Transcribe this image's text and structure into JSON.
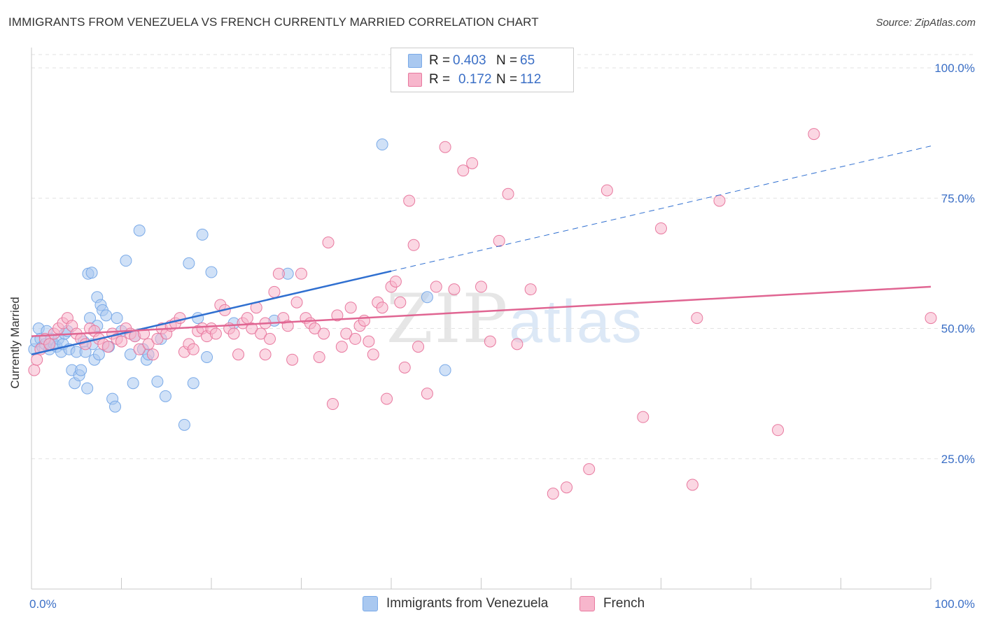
{
  "header": {
    "title": "IMMIGRANTS FROM VENEZUELA VS FRENCH CURRENTLY MARRIED CORRELATION CHART",
    "source": "Source: ZipAtlas.com"
  },
  "watermark": {
    "zip": "ZIP",
    "atlas": "atlas"
  },
  "legend": {
    "rows": [
      {
        "r_label": "R =",
        "r_value": "0.403",
        "n_label": "N =",
        "n_value": "65",
        "color": "#a9c8f0"
      },
      {
        "r_label": "R =",
        "r_value": "0.172",
        "n_label": "N =",
        "n_value": "112",
        "color": "#f7b6cc"
      }
    ]
  },
  "chart_data": {
    "type": "scatter",
    "title": "IMMIGRANTS FROM VENEZUELA VS FRENCH CURRENTLY MARRIED CORRELATION CHART",
    "xlabel": "",
    "ylabel": "Currently Married",
    "xlim": [
      0,
      100
    ],
    "ylim": [
      0,
      100
    ],
    "x_tick_labels": [
      "0.0%",
      "100.0%"
    ],
    "y_ticks": [
      25,
      50,
      75,
      100
    ],
    "y_tick_labels": [
      "25.0%",
      "50.0%",
      "75.0%",
      "100.0%"
    ],
    "grid": "horizontal dashed",
    "legend_position": "top-center",
    "series": [
      {
        "name": "Immigrants from Venezuela",
        "color": "#7aaae8",
        "fill": "#a9c8f0",
        "R": 0.403,
        "N": 65,
        "trend": {
          "x0": 0,
          "y0": 45.0,
          "x1": 40,
          "y1": 61.0,
          "dash_x1": 100,
          "dash_y1": 85.0
        },
        "points": [
          [
            0.3,
            46
          ],
          [
            0.5,
            47.5
          ],
          [
            0.8,
            50
          ],
          [
            1.0,
            48
          ],
          [
            1.2,
            46.5
          ],
          [
            1.5,
            47
          ],
          [
            1.7,
            49.5
          ],
          [
            2.0,
            46
          ],
          [
            2.2,
            48
          ],
          [
            2.5,
            47
          ],
          [
            2.8,
            46.5
          ],
          [
            3.0,
            48
          ],
          [
            3.3,
            45.5
          ],
          [
            3.5,
            47
          ],
          [
            3.7,
            49
          ],
          [
            4.0,
            49.5
          ],
          [
            4.2,
            46
          ],
          [
            4.5,
            42
          ],
          [
            4.8,
            39.5
          ],
          [
            5.0,
            45.5
          ],
          [
            5.3,
            41
          ],
          [
            5.5,
            42
          ],
          [
            5.8,
            47.5
          ],
          [
            6.0,
            45.5
          ],
          [
            6.2,
            38.5
          ],
          [
            6.5,
            52
          ],
          [
            6.8,
            47
          ],
          [
            7.0,
            44
          ],
          [
            7.3,
            50.5
          ],
          [
            7.5,
            45
          ],
          [
            6.3,
            60.5
          ],
          [
            6.7,
            60.7
          ],
          [
            7.3,
            56
          ],
          [
            7.7,
            54.5
          ],
          [
            7.9,
            53.5
          ],
          [
            8.3,
            52.5
          ],
          [
            8.6,
            46.5
          ],
          [
            9.0,
            36.5
          ],
          [
            9.3,
            35
          ],
          [
            9.5,
            52
          ],
          [
            10.0,
            49.5
          ],
          [
            10.5,
            63
          ],
          [
            11.0,
            45
          ],
          [
            11.3,
            39.5
          ],
          [
            11.5,
            48.5
          ],
          [
            12.0,
            68.8
          ],
          [
            12.4,
            46
          ],
          [
            12.8,
            44
          ],
          [
            13.0,
            45
          ],
          [
            14.0,
            39.8
          ],
          [
            14.4,
            48
          ],
          [
            14.9,
            37
          ],
          [
            17.5,
            62.5
          ],
          [
            18.0,
            39.5
          ],
          [
            18.5,
            52
          ],
          [
            19.0,
            68
          ],
          [
            19.5,
            44.5
          ],
          [
            20.0,
            60.8
          ],
          [
            22.5,
            51
          ],
          [
            27,
            51.5
          ],
          [
            39.0,
            85.3
          ],
          [
            44,
            56
          ],
          [
            46,
            42
          ],
          [
            28.5,
            60.5
          ],
          [
            17.0,
            31.5
          ]
        ]
      },
      {
        "name": "French",
        "color": "#e8799f",
        "fill": "#f7b6cc",
        "R": 0.172,
        "N": 112,
        "trend": {
          "x0": 0,
          "y0": 48.5,
          "x1": 100,
          "y1": 58.0
        },
        "points": [
          [
            0.3,
            42
          ],
          [
            0.6,
            44
          ],
          [
            1.0,
            46
          ],
          [
            1.5,
            48
          ],
          [
            2.0,
            47
          ],
          [
            2.5,
            49
          ],
          [
            3.0,
            50
          ],
          [
            3.5,
            51
          ],
          [
            4.0,
            52
          ],
          [
            4.5,
            50.5
          ],
          [
            5.0,
            49
          ],
          [
            5.5,
            48
          ],
          [
            6.0,
            47
          ],
          [
            6.5,
            50
          ],
          [
            7.0,
            49.5
          ],
          [
            7.5,
            48
          ],
          [
            8.0,
            47
          ],
          [
            8.5,
            46.5
          ],
          [
            9.0,
            49
          ],
          [
            9.5,
            48
          ],
          [
            10.0,
            47.5
          ],
          [
            10.5,
            50
          ],
          [
            11.0,
            49
          ],
          [
            11.5,
            48.5
          ],
          [
            12.0,
            46
          ],
          [
            12.5,
            49
          ],
          [
            13.0,
            47
          ],
          [
            13.5,
            45
          ],
          [
            14.0,
            48
          ],
          [
            14.5,
            50
          ],
          [
            15.0,
            49
          ],
          [
            15.5,
            50.5
          ],
          [
            16.0,
            51
          ],
          [
            16.5,
            52
          ],
          [
            17.0,
            45.5
          ],
          [
            17.5,
            47
          ],
          [
            18.0,
            46
          ],
          [
            18.5,
            49.5
          ],
          [
            19.0,
            50
          ],
          [
            19.5,
            48.5
          ],
          [
            20.0,
            50
          ],
          [
            20.5,
            49
          ],
          [
            21.0,
            54.5
          ],
          [
            21.5,
            53.5
          ],
          [
            22.0,
            50
          ],
          [
            22.5,
            49
          ],
          [
            23.0,
            45
          ],
          [
            23.5,
            51
          ],
          [
            24.0,
            52
          ],
          [
            24.5,
            50
          ],
          [
            25.0,
            54
          ],
          [
            25.5,
            49
          ],
          [
            26.0,
            51
          ],
          [
            26.5,
            48
          ],
          [
            27.0,
            57
          ],
          [
            27.5,
            60.5
          ],
          [
            28.0,
            52
          ],
          [
            28.5,
            50.5
          ],
          [
            29.0,
            44
          ],
          [
            29.5,
            55
          ],
          [
            30.0,
            60.5
          ],
          [
            30.5,
            52
          ],
          [
            31.0,
            51
          ],
          [
            31.5,
            50
          ],
          [
            32.0,
            44.5
          ],
          [
            32.5,
            49
          ],
          [
            33.0,
            66.5
          ],
          [
            33.5,
            35.5
          ],
          [
            34.0,
            52.5
          ],
          [
            34.5,
            46.5
          ],
          [
            35.0,
            49
          ],
          [
            35.5,
            54
          ],
          [
            36.0,
            48
          ],
          [
            36.5,
            50.5
          ],
          [
            37.0,
            51.5
          ],
          [
            37.5,
            47.5
          ],
          [
            38.0,
            45
          ],
          [
            38.5,
            55
          ],
          [
            39.0,
            54
          ],
          [
            39.5,
            36.5
          ],
          [
            40.0,
            58
          ],
          [
            40.5,
            59
          ],
          [
            41.0,
            55
          ],
          [
            41.5,
            42.5
          ],
          [
            42.0,
            74.5
          ],
          [
            42.5,
            66
          ],
          [
            43.0,
            46.5
          ],
          [
            44.0,
            37.5
          ],
          [
            45.0,
            58
          ],
          [
            46.0,
            84.8
          ],
          [
            47.0,
            57.5
          ],
          [
            48.0,
            80.3
          ],
          [
            49.0,
            81.7
          ],
          [
            50.0,
            58
          ],
          [
            51.0,
            47.5
          ],
          [
            52.0,
            66.8
          ],
          [
            53.0,
            75.8
          ],
          [
            54.0,
            47
          ],
          [
            55.5,
            57.5
          ],
          [
            58.0,
            18.3
          ],
          [
            59.5,
            19.5
          ],
          [
            62.0,
            23
          ],
          [
            64.0,
            76.5
          ],
          [
            68.0,
            33
          ],
          [
            70.0,
            69.2
          ],
          [
            73.5,
            20
          ],
          [
            74.0,
            52
          ],
          [
            76.5,
            74.5
          ],
          [
            83.0,
            30.5
          ],
          [
            87.0,
            87.3
          ],
          [
            100,
            52
          ],
          [
            26,
            45
          ]
        ]
      }
    ]
  },
  "bottom_legend": {
    "items": [
      {
        "label": "Immigrants from Venezuela",
        "color": "#a9c8f0"
      },
      {
        "label": "French",
        "color": "#f7b6cc"
      }
    ]
  }
}
